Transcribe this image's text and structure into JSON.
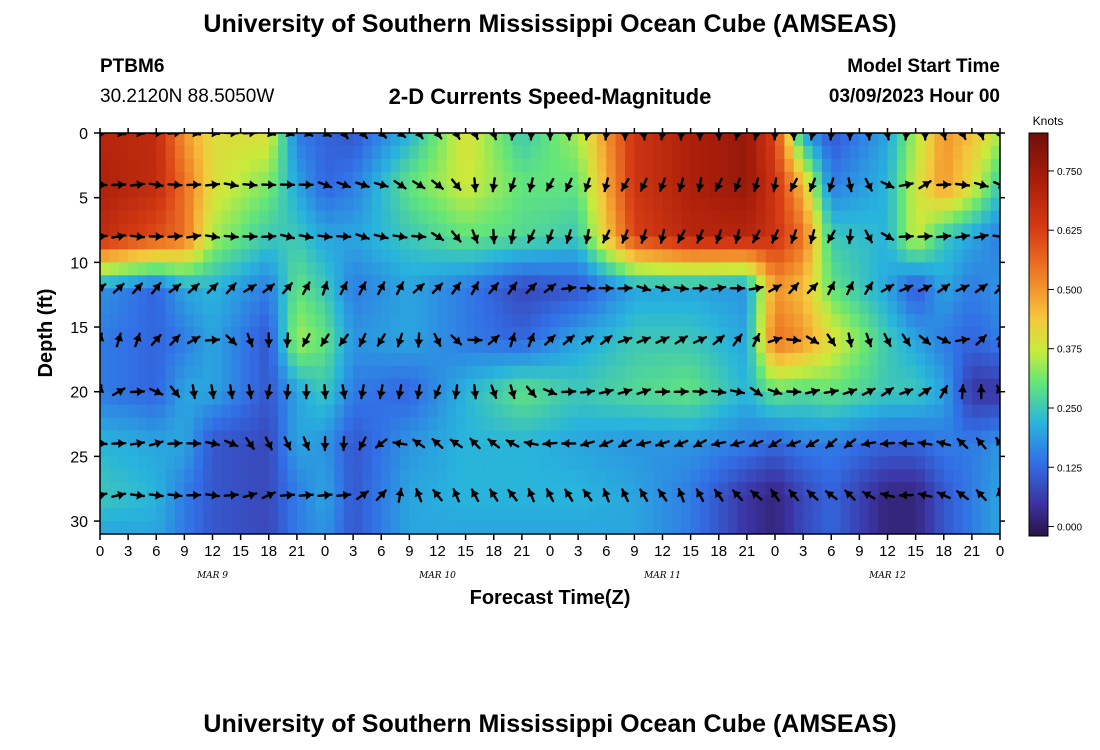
{
  "header": {
    "title": "University of Southern Mississippi Ocean Cube (AMSEAS)",
    "station": "PTBM6",
    "coords": "30.2120N  88.5050W",
    "subtitle": "2-D Currents Speed-Magnitude",
    "model_start_label": "Model Start Time",
    "model_start_value": "03/09/2023 Hour 00"
  },
  "footer": {
    "title": "University of Southern Mississippi Ocean Cube (AMSEAS)"
  },
  "chart_data": {
    "type": "heatmap",
    "title": "2-D Currents Speed-Magnitude",
    "xlabel": "Forecast Time(Z)",
    "ylabel": "Depth (ft)",
    "x_range": [
      0,
      96
    ],
    "y_range": [
      0,
      31
    ],
    "x_ticks": [
      0,
      3,
      6,
      9,
      12,
      15,
      18,
      21,
      24,
      27,
      30,
      33,
      36,
      39,
      42,
      45,
      48,
      51,
      54,
      57,
      60,
      63,
      66,
      69,
      72,
      75,
      78,
      81,
      84,
      87,
      90,
      93,
      96
    ],
    "x_tick_labels": [
      "0",
      "3",
      "6",
      "9",
      "12",
      "15",
      "18",
      "21",
      "0",
      "3",
      "6",
      "9",
      "12",
      "15",
      "18",
      "21",
      "0",
      "3",
      "6",
      "9",
      "12",
      "15",
      "18",
      "21",
      "0",
      "3",
      "6",
      "9",
      "12",
      "15",
      "18",
      "21",
      "0"
    ],
    "y_ticks": [
      0,
      5,
      10,
      15,
      20,
      25,
      30
    ],
    "y_tick_labels": [
      "0",
      "5",
      "10",
      "15",
      "20",
      "25",
      "30"
    ],
    "day_labels": [
      {
        "x": 12,
        "label": "MAR 9"
      },
      {
        "x": 36,
        "label": "MAR 10"
      },
      {
        "x": 60,
        "label": "MAR 11"
      },
      {
        "x": 84,
        "label": "MAR 12"
      }
    ],
    "colorbar": {
      "label": "Knots",
      "range": [
        -0.02,
        0.83
      ],
      "ticks": [
        0.0,
        0.125,
        0.25,
        0.375,
        0.5,
        0.625,
        0.75
      ],
      "tick_labels": [
        "0.000",
        "0.125",
        "0.250",
        "0.375",
        "0.500",
        "0.625",
        "0.750"
      ]
    },
    "arrow_depths": [
      0,
      4,
      8,
      12,
      16,
      20,
      24,
      28
    ],
    "arrow_times": [
      0,
      2,
      4,
      6,
      8,
      10,
      12,
      14,
      16,
      18,
      20,
      22,
      24,
      26,
      28,
      30,
      32,
      34,
      36,
      38,
      40,
      42,
      44,
      46,
      48,
      50,
      52,
      54,
      56,
      58,
      60,
      62,
      64,
      66,
      68,
      70,
      72,
      74,
      76,
      78,
      80,
      82,
      84,
      86,
      88,
      90,
      92,
      94,
      96
    ],
    "depth_levels": [
      0,
      4,
      8,
      12,
      16,
      20,
      24,
      28,
      31
    ],
    "time_knots": [
      0,
      6,
      9,
      12,
      18,
      21,
      24,
      27,
      33,
      39,
      45,
      51,
      57,
      63,
      69,
      72,
      75,
      78,
      84,
      87,
      90,
      93,
      96
    ],
    "speed_knots": [
      [
        0.7,
        0.68,
        0.5,
        0.4,
        0.4,
        0.15,
        0.12,
        0.1,
        0.22,
        0.4,
        0.25,
        0.35,
        0.65,
        0.72,
        0.76,
        0.62,
        0.2,
        0.1,
        0.2,
        0.35,
        0.5,
        0.45,
        0.35
      ],
      [
        0.72,
        0.68,
        0.55,
        0.4,
        0.32,
        0.2,
        0.12,
        0.15,
        0.3,
        0.38,
        0.3,
        0.3,
        0.65,
        0.72,
        0.76,
        0.65,
        0.45,
        0.15,
        0.22,
        0.38,
        0.5,
        0.4,
        0.25
      ],
      [
        0.68,
        0.6,
        0.55,
        0.35,
        0.25,
        0.25,
        0.2,
        0.2,
        0.25,
        0.3,
        0.28,
        0.25,
        0.62,
        0.7,
        0.7,
        0.65,
        0.55,
        0.25,
        0.22,
        0.38,
        0.25,
        0.2,
        0.15
      ],
      [
        0.18,
        0.12,
        0.2,
        0.22,
        0.15,
        0.3,
        0.25,
        0.15,
        0.2,
        0.15,
        0.08,
        0.1,
        0.2,
        0.2,
        0.18,
        0.5,
        0.45,
        0.3,
        0.2,
        0.1,
        0.2,
        0.15,
        0.18
      ],
      [
        0.15,
        0.12,
        0.15,
        0.2,
        0.1,
        0.35,
        0.3,
        0.18,
        0.2,
        0.15,
        0.12,
        0.2,
        0.25,
        0.25,
        0.2,
        0.55,
        0.5,
        0.4,
        0.25,
        0.2,
        0.15,
        0.12,
        0.15
      ],
      [
        0.15,
        0.12,
        0.2,
        0.2,
        0.1,
        0.2,
        0.25,
        0.15,
        0.12,
        0.22,
        0.3,
        0.25,
        0.28,
        0.3,
        0.22,
        0.3,
        0.28,
        0.3,
        0.25,
        0.25,
        0.2,
        0.05,
        0.05
      ],
      [
        0.22,
        0.2,
        0.2,
        0.1,
        0.08,
        0.2,
        0.18,
        0.1,
        0.18,
        0.22,
        0.22,
        0.2,
        0.18,
        0.18,
        0.15,
        0.12,
        0.15,
        0.15,
        0.12,
        0.12,
        0.15,
        0.15,
        0.18
      ],
      [
        0.25,
        0.22,
        0.15,
        0.1,
        0.08,
        0.15,
        0.2,
        0.1,
        0.2,
        0.22,
        0.22,
        0.22,
        0.2,
        0.15,
        0.05,
        0.02,
        0.08,
        0.12,
        0.02,
        0.02,
        0.1,
        0.15,
        0.2
      ],
      [
        0.2,
        0.2,
        0.15,
        0.1,
        0.08,
        0.15,
        0.18,
        0.1,
        0.2,
        0.2,
        0.2,
        0.2,
        0.2,
        0.15,
        0.05,
        0.02,
        0.08,
        0.12,
        0.02,
        0.02,
        0.1,
        0.15,
        0.2
      ]
    ],
    "direction_deg": [
      [
        95,
        95,
        95,
        135,
        135,
        180,
        185,
        180,
        185,
        180,
        180,
        150
      ],
      [
        90,
        90,
        90,
        110,
        120,
        200,
        200,
        200,
        200,
        200,
        60,
        120
      ],
      [
        90,
        90,
        95,
        100,
        100,
        200,
        200,
        200,
        200,
        200,
        80,
        90
      ],
      [
        45,
        45,
        50,
        20,
        45,
        30,
        90,
        100,
        80,
        20,
        70,
        45
      ],
      [
        15,
        45,
        180,
        220,
        180,
        20,
        60,
        70,
        30,
        160,
        150,
        20
      ],
      [
        20,
        160,
        180,
        180,
        200,
        160,
        70,
        80,
        120,
        70,
        60,
        330
      ],
      [
        90,
        80,
        150,
        180,
        315,
        300,
        250,
        250,
        250,
        230,
        280,
        330
      ],
      [
        80,
        100,
        70,
        90,
        330,
        330,
        330,
        330,
        320,
        315,
        270,
        340
      ]
    ]
  }
}
